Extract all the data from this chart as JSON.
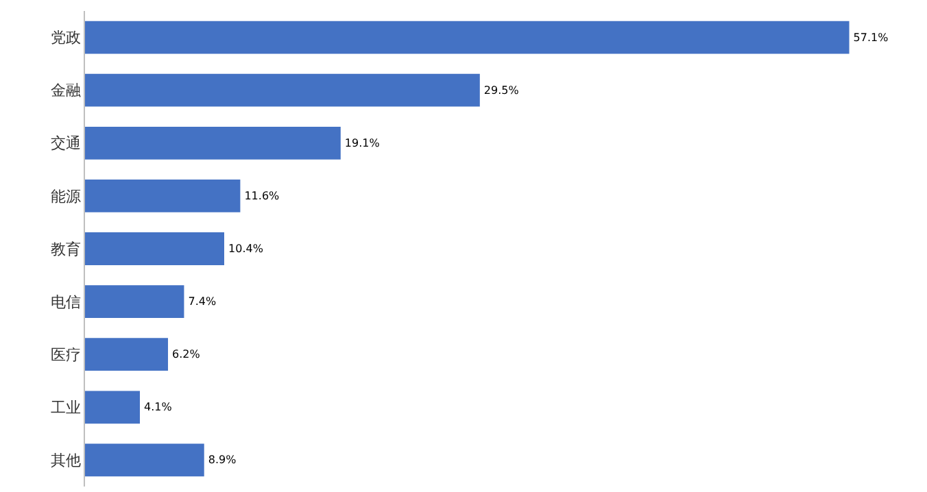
{
  "chart_data": {
    "type": "bar",
    "orientation": "horizontal",
    "categories": [
      "党政",
      "金融",
      "交通",
      "能源",
      "教育",
      "电信",
      "医疗",
      "工业",
      "其他"
    ],
    "values": [
      57.1,
      29.5,
      19.1,
      11.6,
      10.4,
      7.4,
      6.2,
      4.1,
      8.9
    ],
    "value_labels": [
      "57.1%",
      "29.5%",
      "19.1%",
      "11.6%",
      "10.4%",
      "7.4%",
      "6.2%",
      "4.1%",
      "8.9%"
    ],
    "color": "#4472c4",
    "tick_labels": "y",
    "grid": false
  }
}
